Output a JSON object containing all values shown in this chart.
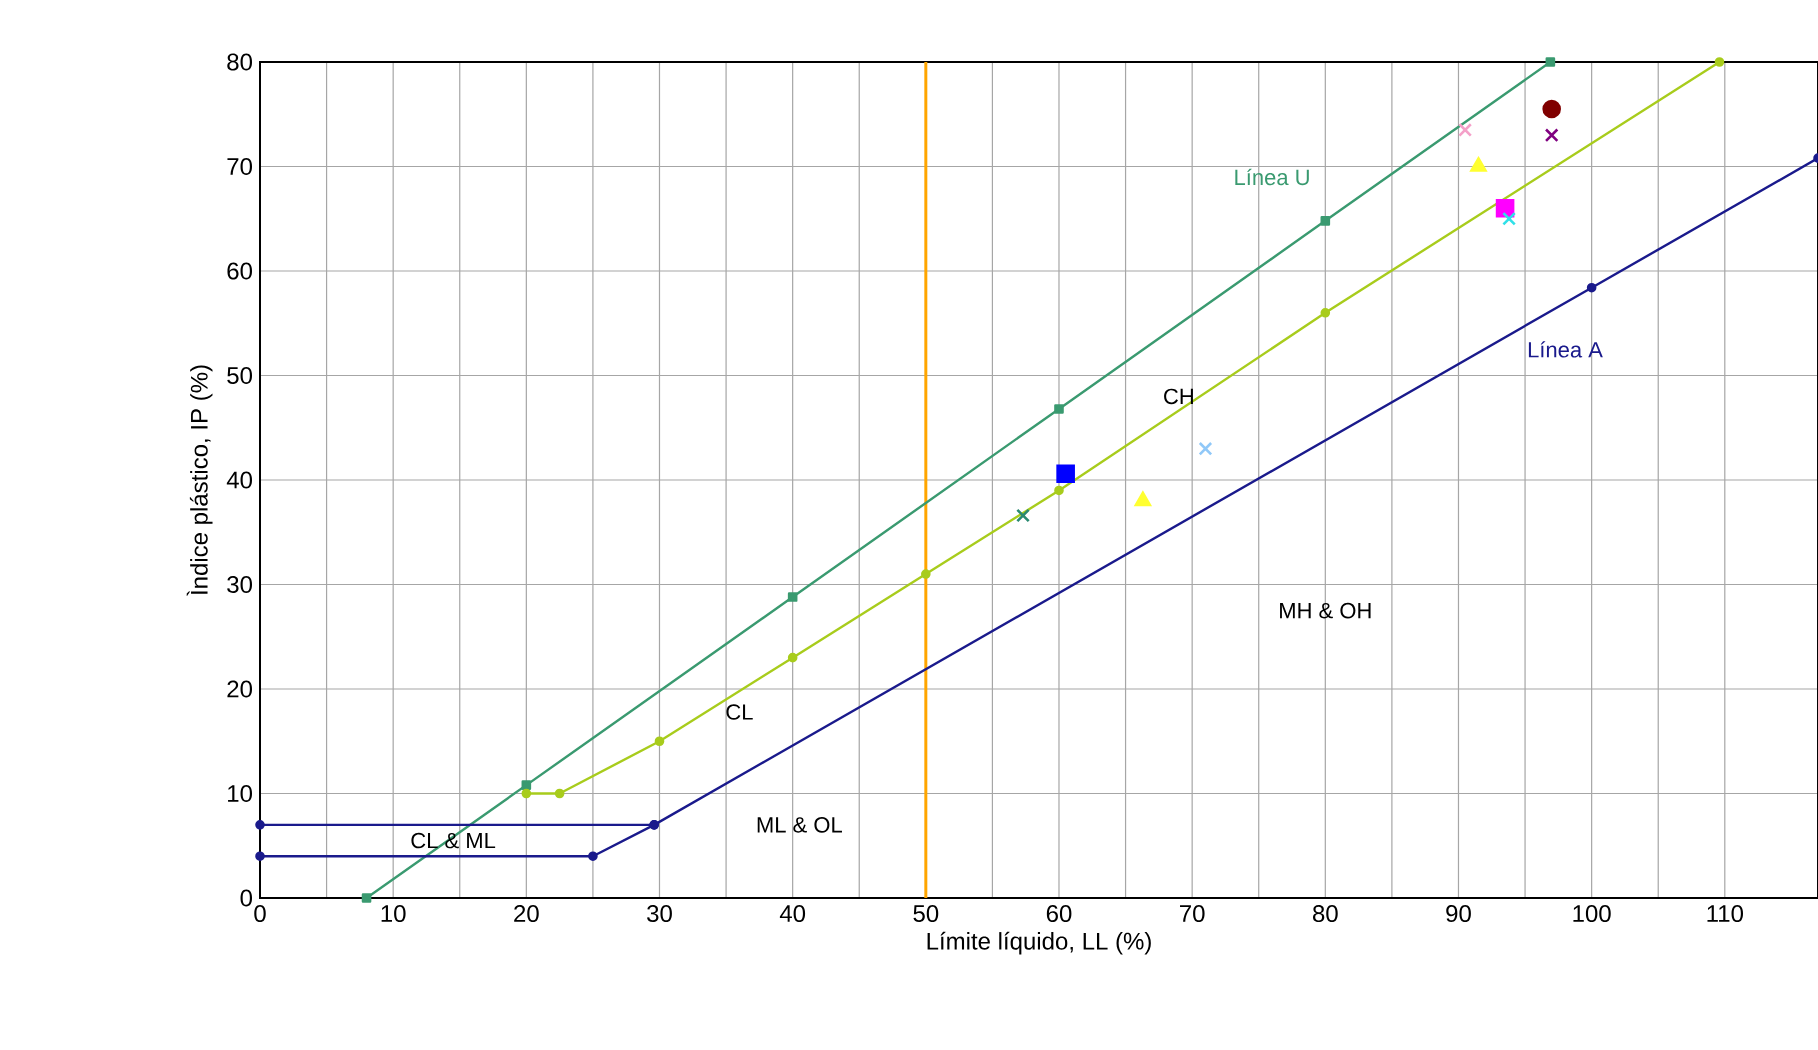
{
  "chart_data": {
    "type": "line",
    "xlabel": "Límite líquido, LL (%)",
    "ylabel": "Ìndice plástico, IP (%)",
    "xlim": [
      0,
      117
    ],
    "ylim": [
      0,
      80
    ],
    "xticks": [
      0,
      10,
      20,
      30,
      40,
      50,
      60,
      70,
      80,
      90,
      100,
      110
    ],
    "yticks": [
      0,
      10,
      20,
      30,
      40,
      50,
      60,
      70,
      80
    ],
    "grid": true,
    "series": [
      {
        "color": "#3a9a70",
        "marker": "square",
        "x": [
          8,
          20,
          40,
          60,
          80,
          96.9
        ],
        "values": [
          0,
          10.8,
          28.8,
          46.8,
          64.8,
          80
        ]
      },
      {
        "color": "#a8cc1c",
        "marker": "circle",
        "x": [
          20,
          22.5,
          30,
          40,
          50,
          60,
          80,
          109.6
        ],
        "values": [
          10,
          10,
          15,
          23,
          31,
          39,
          56,
          80
        ]
      },
      {
        "color": "#1a1a8c",
        "marker": "circle",
        "x": [
          0,
          25,
          29.6,
          100,
          117
        ],
        "values": [
          4,
          4,
          7,
          58.4,
          70.8
        ]
      },
      {
        "color": "#1a1a8c",
        "marker": "circle",
        "x": [
          0,
          29.6
        ],
        "values": [
          7,
          7
        ]
      },
      {
        "type": "scatter",
        "color": "#2a8a70",
        "marker": "cross",
        "x": [
          57.3
        ],
        "values": [
          36.6
        ]
      },
      {
        "type": "scatter",
        "color": "#0000ff",
        "marker": "square",
        "x": [
          60.5
        ],
        "values": [
          40.6
        ]
      },
      {
        "type": "scatter",
        "color": "#ffff30",
        "marker": "triangle",
        "x": [
          66.3,
          91.5
        ],
        "values": [
          38,
          70
        ]
      },
      {
        "type": "scatter",
        "color": "#90c8f8",
        "marker": "cross",
        "x": [
          71
        ],
        "values": [
          43
        ]
      },
      {
        "type": "scatter",
        "color": "#f4a0c8",
        "marker": "cross",
        "x": [
          90.5
        ],
        "values": [
          73.5
        ]
      },
      {
        "type": "scatter",
        "color": "#ff00ff",
        "marker": "square",
        "x": [
          93.5
        ],
        "values": [
          66
        ]
      },
      {
        "type": "scatter",
        "color": "#30e0e8",
        "marker": "cross",
        "x": [
          93.8
        ],
        "values": [
          65
        ]
      },
      {
        "type": "scatter",
        "color": "#800000",
        "marker": "circle",
        "x": [
          97
        ],
        "values": [
          75.5
        ]
      },
      {
        "type": "scatter",
        "color": "#800080",
        "marker": "cross",
        "x": [
          97
        ],
        "values": [
          73
        ]
      }
    ],
    "ref_lines": [
      {
        "axis": "x",
        "value": 50,
        "color": "#ffa500"
      }
    ],
    "annotations": [
      "Línea U",
      "Línea A",
      "CH",
      "CL",
      "CL & ML",
      "ML & OL",
      "MH & OH"
    ]
  }
}
